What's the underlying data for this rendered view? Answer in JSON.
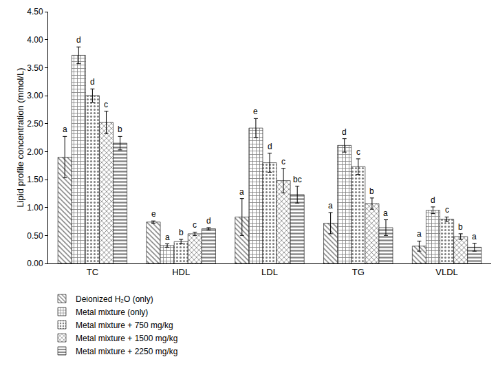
{
  "chart_data": {
    "type": "bar",
    "y_label": "Lipid profile concentration (mmol/L)",
    "categories": [
      "TC",
      "HDL",
      "LDL",
      "TG",
      "VLDL"
    ],
    "series": [
      {
        "name": "Deionized H₂O (only)",
        "color": "#000000",
        "marker": "\\",
        "values": [
          1.9,
          0.74,
          0.83,
          0.72,
          0.31
        ],
        "errors": [
          0.37,
          0.02,
          0.33,
          0.19,
          0.09
        ],
        "annotations": [
          "a",
          "e",
          "a",
          "a",
          "a"
        ]
      },
      {
        "name": "Metal mixture (only)",
        "color": "#000000",
        "marker": "+",
        "values": [
          3.72,
          0.32,
          2.42,
          2.11,
          0.95
        ],
        "errors": [
          0.15,
          0.03,
          0.17,
          0.12,
          0.06
        ],
        "annotations": [
          "d",
          "a",
          "e",
          "d",
          "d"
        ]
      },
      {
        "name": "Metal mixture + 750 mg/kg",
        "color": "#000000",
        "marker": ".",
        "values": [
          3.0,
          0.39,
          1.8,
          1.73,
          0.79
        ],
        "errors": [
          0.12,
          0.04,
          0.17,
          0.14,
          0.04
        ],
        "annotations": [
          "d",
          "b",
          "d",
          "c",
          "c"
        ]
      },
      {
        "name": "Metal mixture + 1500 mg/kg",
        "color": "#000000",
        "marker": "x",
        "values": [
          2.52,
          0.53,
          1.48,
          1.07,
          0.48
        ],
        "errors": [
          0.2,
          0.03,
          0.22,
          0.1,
          0.05
        ],
        "annotations": [
          "c",
          "c",
          "c",
          "b",
          "b"
        ]
      },
      {
        "name": "Metal mixture + 2250 mg/kg",
        "color": "#000000",
        "marker": "-",
        "values": [
          2.15,
          0.62,
          1.23,
          0.64,
          0.29
        ],
        "errors": [
          0.12,
          0.02,
          0.15,
          0.14,
          0.07
        ],
        "annotations": [
          "b",
          "d",
          "bc",
          "a",
          "a"
        ]
      }
    ],
    "ylim": [
      0,
      4.5
    ],
    "yticks": [
      {
        "value": 0,
        "label": "0.00"
      },
      {
        "value": 0.5,
        "label": "0.50"
      },
      {
        "value": 1,
        "label": "1.00"
      },
      {
        "value": 1.5,
        "label": "1.50"
      },
      {
        "value": 2,
        "label": "2.00"
      },
      {
        "value": 2.5,
        "label": "2.50"
      },
      {
        "value": 3,
        "label": "3.00"
      },
      {
        "value": 3.5,
        "label": "3.50"
      },
      {
        "value": 4,
        "label": "4.00"
      },
      {
        "value": 4.5,
        "label": "4.50"
      }
    ],
    "grid": false,
    "legend": "bottom"
  }
}
